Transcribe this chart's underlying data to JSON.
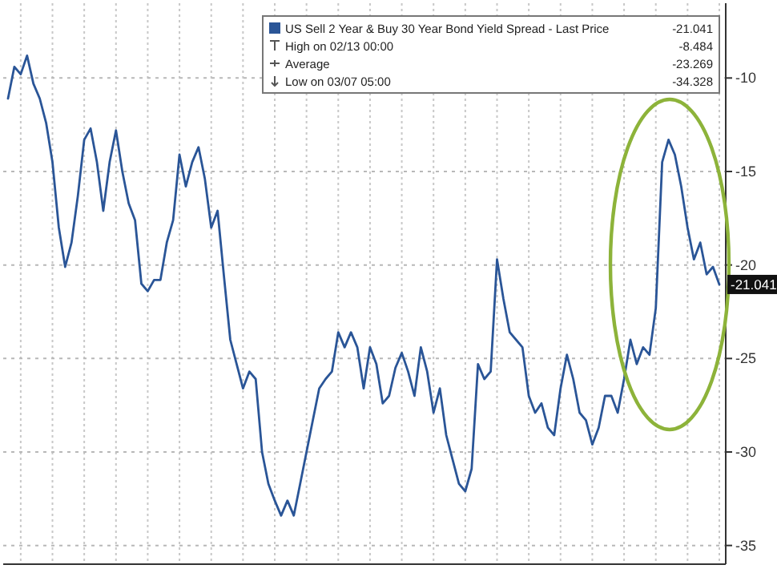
{
  "chart_data": {
    "type": "line",
    "categories": [
      null,
      null,
      null,
      null,
      null,
      null,
      null,
      null,
      null,
      null,
      null,
      null,
      null,
      null,
      null,
      null,
      null,
      null,
      null,
      null,
      null,
      null,
      null,
      null,
      null,
      null,
      null,
      null,
      null,
      null,
      null,
      null,
      null,
      null,
      null,
      null,
      null,
      null,
      null,
      null,
      null,
      null,
      null,
      null,
      null,
      null,
      null,
      null,
      null,
      null,
      null,
      null,
      null,
      null,
      null,
      null,
      null,
      null,
      null,
      null,
      null,
      null,
      null,
      null,
      null,
      null,
      null,
      null,
      null,
      null,
      null,
      null,
      null,
      null,
      null,
      null,
      null,
      null,
      null,
      null,
      null,
      null,
      null,
      null,
      null,
      null,
      null,
      null,
      null,
      null,
      null,
      null,
      null,
      null,
      null,
      null,
      null,
      null,
      null,
      null,
      null,
      null,
      null,
      null,
      null,
      null,
      null,
      null,
      null,
      null,
      null,
      null,
      null
    ],
    "series": [
      {
        "name": "US Sell 2 Year & Buy 30 Year Bond Yield Spread - Last Price",
        "color": "#2a5597",
        "values": [
          -11.1,
          -9.4,
          -9.8,
          -8.8,
          -10.3,
          -11.1,
          -12.4,
          -14.5,
          -18.0,
          -20.1,
          -18.8,
          -16.3,
          -13.3,
          -12.7,
          -14.5,
          -17.1,
          -14.5,
          -12.8,
          -15.0,
          -16.7,
          -17.6,
          -21.0,
          -21.4,
          -20.8,
          -20.8,
          -18.8,
          -17.6,
          -14.1,
          -15.8,
          -14.5,
          -13.7,
          -15.4,
          -18.0,
          -17.1,
          -20.6,
          -24.0,
          -25.3,
          -26.6,
          -25.7,
          -26.1,
          -30.0,
          -31.7,
          -32.6,
          -33.4,
          -32.6,
          -33.4,
          -31.7,
          -30.0,
          -28.3,
          -26.6,
          -26.1,
          -25.7,
          -23.6,
          -24.4,
          -23.6,
          -24.4,
          -26.6,
          -24.4,
          -25.3,
          -27.4,
          -27.0,
          -25.5,
          -24.7,
          -25.7,
          -27.0,
          -24.4,
          -25.7,
          -27.9,
          -26.6,
          -29.1,
          -30.4,
          -31.7,
          -32.1,
          -30.9,
          -25.3,
          -26.1,
          -25.7,
          -19.7,
          -21.8,
          -23.6,
          -24.0,
          -24.4,
          -27.0,
          -27.9,
          -27.4,
          -28.7,
          -29.1,
          -26.6,
          -24.8,
          -26.1,
          -27.9,
          -28.3,
          -29.6,
          -28.7,
          -27.0,
          -27.0,
          -27.9,
          -26.1,
          -24.0,
          -25.3,
          -24.4,
          -24.8,
          -22.3,
          -14.5,
          -13.3,
          -14.1,
          -15.8,
          -18.0,
          -19.7,
          -18.8,
          -20.5,
          -20.1,
          -21.041
        ]
      }
    ],
    "ylim": [
      -36,
      -6
    ],
    "yticks": [
      -10,
      -15,
      -20,
      -25,
      -30,
      -35
    ],
    "grid": true,
    "legend": "top right",
    "tick_labels": "y",
    "annotations": [
      {
        "text": "-21.041",
        "y": -21.041
      },
      "-21.041",
      "High on 02/13 00:00",
      "-8.484",
      "Average",
      "-23.269",
      "Low on 03/07 05:00",
      "-34.328"
    ]
  }
}
